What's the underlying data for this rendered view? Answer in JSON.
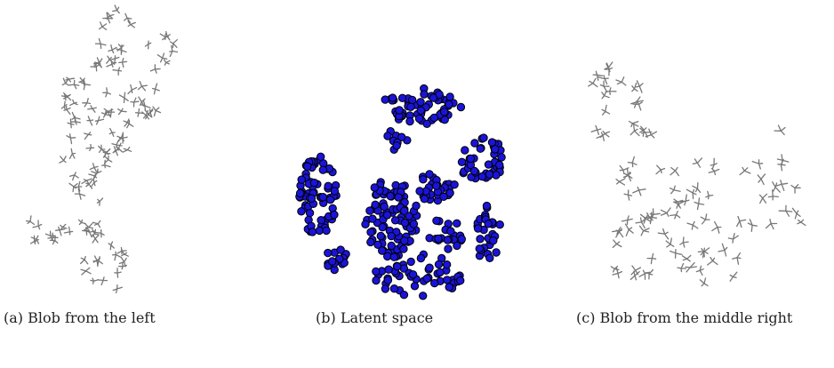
{
  "figure": {
    "panels": [
      {
        "caption": "(a) Blob from the left"
      },
      {
        "caption": "(b) Latent space"
      },
      {
        "caption": "(c) Blob from the middle right"
      }
    ]
  }
}
